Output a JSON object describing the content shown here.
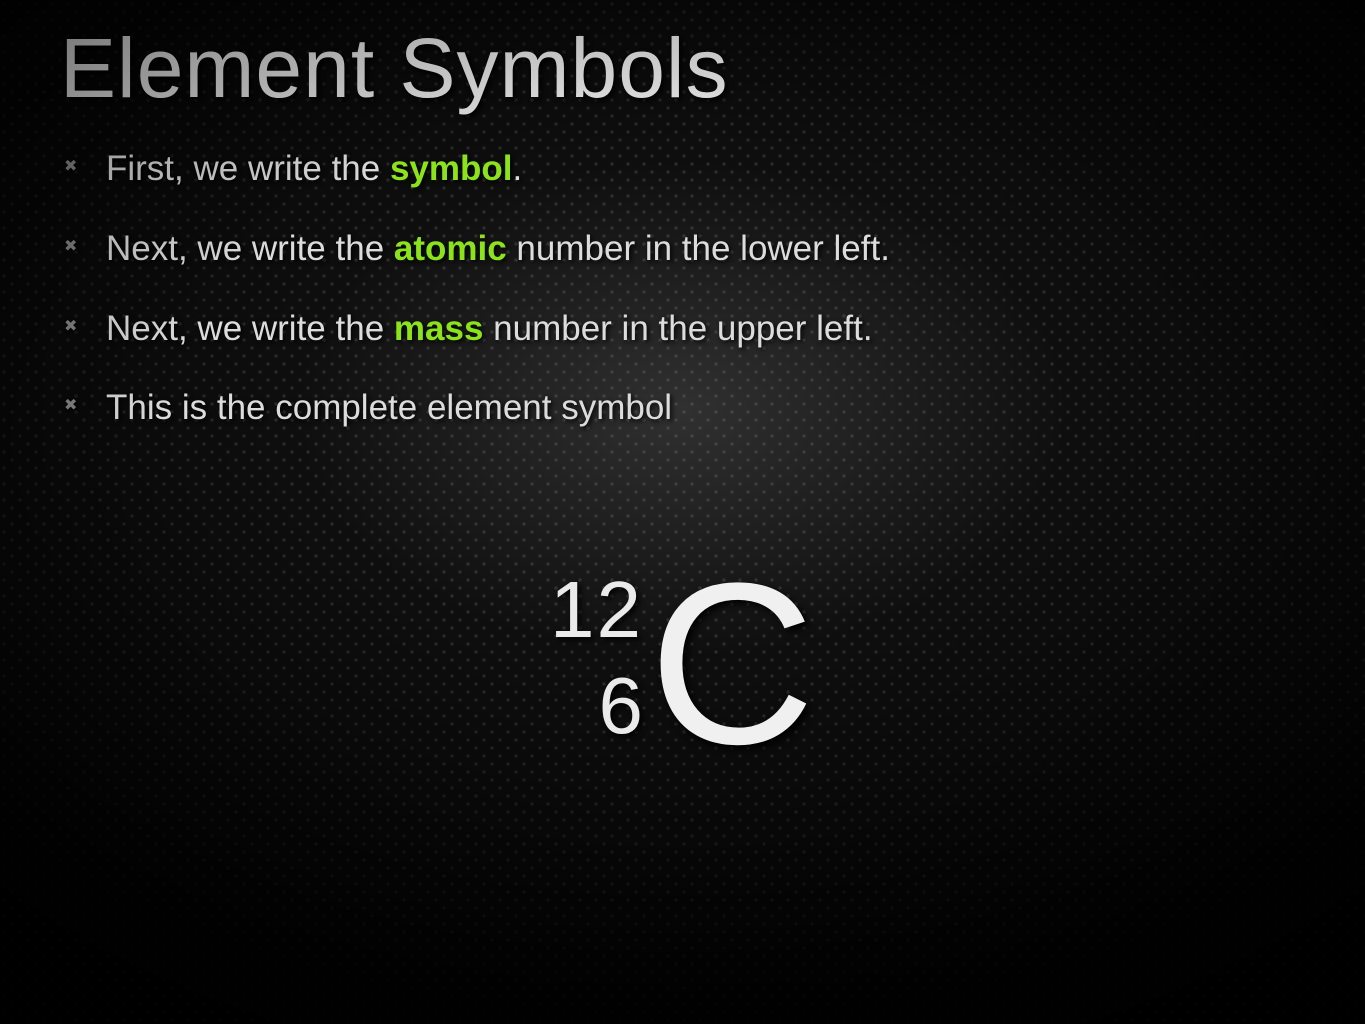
{
  "slide": {
    "title": "Element Symbols",
    "title_fontsize": 84,
    "title_color": "#e0e0e0",
    "keyword_color": "#8de31a",
    "body_color": "#dcdcdc",
    "body_fontsize": 35,
    "bullets": [
      {
        "pre": "First, we write the ",
        "kw": "symbol",
        "post": "."
      },
      {
        "pre": "Next, we write the ",
        "kw": "atomic",
        "post": " number in the lower left."
      },
      {
        "pre": "Next, we write the ",
        "kw": "mass",
        "post": " number in the upper left."
      },
      {
        "pre": "This is the complete element symbol",
        "kw": "",
        "post": ""
      }
    ],
    "element": {
      "symbol": "C",
      "mass_number": "12",
      "atomic_number": "6",
      "symbol_fontsize": 230,
      "number_fontsize": 80,
      "text_color": "#f0f0f0"
    },
    "background": {
      "base_color": "#0a0a0a",
      "dot_color": "#2b2b2b",
      "spotlight_center_color": "rgba(120,120,120,0.35)"
    }
  }
}
